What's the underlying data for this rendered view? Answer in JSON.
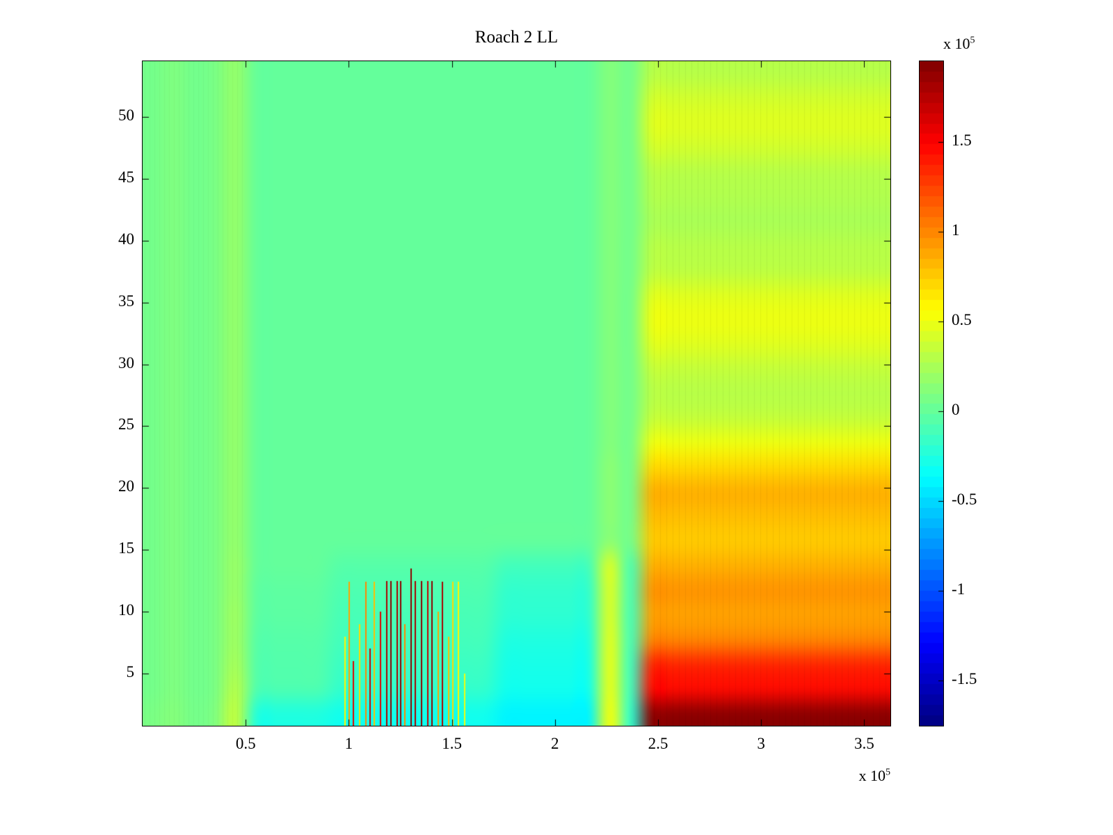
{
  "title": "Roach 2 LL",
  "axes": {
    "x_ticks": [
      "0.5",
      "1",
      "1.5",
      "2",
      "2.5",
      "3",
      "3.5"
    ],
    "x_tick_values": [
      0.5,
      1,
      1.5,
      2,
      2.5,
      3,
      3.5
    ],
    "y_ticks": [
      "5",
      "10",
      "15",
      "20",
      "25",
      "30",
      "35",
      "40",
      "45",
      "50"
    ],
    "y_tick_values": [
      5,
      10,
      15,
      20,
      25,
      30,
      35,
      40,
      45,
      50
    ],
    "x_range_e5": [
      0,
      3.627
    ],
    "y_range": [
      0.78,
      54.5
    ],
    "exponent": {
      "base": "x 10",
      "power": "5"
    }
  },
  "colorbar": {
    "ticks": [
      "1.5",
      "1",
      "0.5",
      "0",
      "-0.5",
      "-1",
      "-1.5"
    ],
    "tick_values": [
      1.5,
      1,
      0.5,
      0,
      -0.5,
      -1,
      -1.5
    ],
    "clim_e5": [
      -1.75,
      1.95
    ],
    "levels": 64,
    "exponent": {
      "base": "x 10",
      "power": "5"
    }
  },
  "chart_data": {
    "type": "heatmap",
    "title": "Roach 2 LL",
    "colormap": "jet",
    "value_scale": 100000,
    "clim_e5": [
      -1.75,
      1.95
    ],
    "grid_x_range_e5": [
      0,
      3.6
    ],
    "grid_y_range": [
      0,
      54
    ],
    "grid_rows_order": "top-to-bottom",
    "grid_e5": [
      [
        0.06,
        0.1,
        0.05,
        0.08,
        0.18,
        0,
        0,
        0,
        0,
        0,
        0,
        0,
        0,
        0,
        0,
        0,
        0,
        0,
        0,
        0,
        0,
        0,
        0.12,
        0.05,
        0.3,
        0.3,
        0.3,
        0.3,
        0.3,
        0.3,
        0.3,
        0.3,
        0.3,
        0.3,
        0.3,
        0.3
      ],
      [
        0.06,
        0.1,
        0.05,
        0.08,
        0.18,
        0,
        0,
        0,
        0,
        0,
        0,
        0,
        0,
        0,
        0,
        0,
        0,
        0,
        0,
        0,
        0,
        0,
        0.12,
        0.05,
        0.4,
        0.4,
        0.4,
        0.4,
        0.4,
        0.4,
        0.4,
        0.4,
        0.4,
        0.4,
        0.4,
        0.4
      ],
      [
        0.06,
        0.1,
        0.05,
        0.08,
        0.18,
        0,
        0,
        0,
        0,
        0,
        0,
        0,
        0,
        0,
        0,
        0,
        0,
        0,
        0,
        0,
        0,
        0,
        0.12,
        0.05,
        0.45,
        0.45,
        0.45,
        0.45,
        0.45,
        0.45,
        0.45,
        0.45,
        0.45,
        0.45,
        0.45,
        0.45
      ],
      [
        0.06,
        0.1,
        0.05,
        0.08,
        0.18,
        0,
        0,
        0,
        0,
        0,
        0,
        0,
        0,
        0,
        0,
        0,
        0,
        0,
        0,
        0,
        0,
        0,
        0.12,
        0.05,
        0.4,
        0.4,
        0.4,
        0.4,
        0.4,
        0.4,
        0.4,
        0.4,
        0.4,
        0.4,
        0.4,
        0.4
      ],
      [
        0.06,
        0.1,
        0.05,
        0.08,
        0.18,
        0,
        0,
        0,
        0,
        0,
        0,
        0,
        0,
        0,
        0,
        0,
        0,
        0,
        0,
        0,
        0,
        0,
        0.12,
        0.05,
        0.3,
        0.3,
        0.3,
        0.3,
        0.3,
        0.3,
        0.3,
        0.3,
        0.3,
        0.3,
        0.3,
        0.3
      ],
      [
        0.06,
        0.1,
        0.05,
        0.08,
        0.18,
        0,
        0,
        0,
        0,
        0,
        0,
        0,
        0,
        0,
        0,
        0,
        0,
        0,
        0,
        0,
        0,
        0,
        0.12,
        0.05,
        0.28,
        0.28,
        0.28,
        0.28,
        0.28,
        0.28,
        0.28,
        0.28,
        0.28,
        0.28,
        0.28,
        0.28
      ],
      [
        0.06,
        0.1,
        0.05,
        0.08,
        0.18,
        0,
        0,
        0,
        0,
        0,
        0,
        0,
        0,
        0,
        0,
        0,
        0,
        0,
        0,
        0,
        0,
        0,
        0.12,
        0.05,
        0.25,
        0.25,
        0.25,
        0.25,
        0.25,
        0.25,
        0.25,
        0.25,
        0.25,
        0.25,
        0.25,
        0.25
      ],
      [
        0.06,
        0.1,
        0.05,
        0.08,
        0.18,
        0,
        0,
        0,
        0,
        0,
        0,
        0,
        0,
        0,
        0,
        0,
        0,
        0,
        0,
        0,
        0,
        0,
        0.12,
        0.05,
        0.3,
        0.3,
        0.3,
        0.3,
        0.3,
        0.3,
        0.3,
        0.3,
        0.3,
        0.3,
        0.3,
        0.3
      ],
      [
        0.06,
        0.1,
        0.05,
        0.08,
        0.18,
        0,
        0,
        0,
        0,
        0,
        0,
        0,
        0,
        0,
        0,
        0,
        0,
        0,
        0,
        0,
        0,
        0,
        0.12,
        0.05,
        0.32,
        0.32,
        0.32,
        0.32,
        0.32,
        0.32,
        0.32,
        0.32,
        0.32,
        0.32,
        0.32,
        0.32
      ],
      [
        0.06,
        0.1,
        0.05,
        0.08,
        0.18,
        0,
        0,
        0,
        0,
        0,
        0,
        0,
        0,
        0,
        0,
        0,
        0,
        0,
        0,
        0,
        0,
        0,
        0.12,
        0.05,
        0.45,
        0.45,
        0.45,
        0.45,
        0.45,
        0.45,
        0.45,
        0.45,
        0.45,
        0.45,
        0.45,
        0.45
      ],
      [
        0.06,
        0.1,
        0.05,
        0.08,
        0.18,
        0,
        0,
        0,
        0,
        0,
        0,
        0,
        0,
        0,
        0,
        0,
        0,
        0,
        0,
        0,
        0,
        0,
        0.12,
        0.05,
        0.5,
        0.5,
        0.5,
        0.5,
        0.5,
        0.5,
        0.5,
        0.5,
        0.5,
        0.5,
        0.5,
        0.5
      ],
      [
        0.06,
        0.1,
        0.05,
        0.08,
        0.18,
        0,
        0,
        0,
        0,
        0,
        0,
        0,
        0,
        0,
        0,
        0,
        0,
        0,
        0,
        0,
        0,
        0,
        0.12,
        0.05,
        0.45,
        0.45,
        0.45,
        0.45,
        0.45,
        0.45,
        0.45,
        0.45,
        0.45,
        0.45,
        0.45,
        0.45
      ],
      [
        0.06,
        0.1,
        0.05,
        0.08,
        0.18,
        0,
        0,
        0,
        0,
        0,
        0,
        0,
        0,
        0,
        0,
        0,
        0,
        0,
        0,
        0,
        0,
        0,
        0.12,
        0.05,
        0.35,
        0.35,
        0.35,
        0.35,
        0.35,
        0.35,
        0.35,
        0.35,
        0.35,
        0.35,
        0.35,
        0.35
      ],
      [
        0.06,
        0.1,
        0.05,
        0.08,
        0.18,
        0,
        0,
        0,
        0,
        0,
        0,
        0,
        0,
        0,
        0,
        0,
        0,
        0,
        0,
        0,
        0,
        0,
        0.12,
        0.05,
        0.3,
        0.3,
        0.3,
        0.3,
        0.3,
        0.3,
        0.3,
        0.3,
        0.3,
        0.3,
        0.3,
        0.3
      ],
      [
        0.06,
        0.1,
        0.05,
        0.08,
        0.18,
        0,
        0,
        0,
        0,
        0,
        0,
        0,
        0,
        0,
        0,
        0,
        0,
        0,
        0,
        0,
        0,
        0,
        0.12,
        0.05,
        0.35,
        0.35,
        0.35,
        0.35,
        0.35,
        0.35,
        0.35,
        0.35,
        0.35,
        0.35,
        0.35,
        0.35
      ],
      [
        0.06,
        0.1,
        0.05,
        0.08,
        0.18,
        0,
        0,
        0,
        0,
        0,
        0,
        0,
        0,
        0,
        0,
        0,
        0,
        0,
        0,
        0,
        0,
        0,
        0.12,
        0.05,
        0.5,
        0.5,
        0.5,
        0.5,
        0.5,
        0.5,
        0.5,
        0.5,
        0.5,
        0.5,
        0.5,
        0.5
      ],
      [
        0.06,
        0.1,
        0.05,
        0.08,
        0.18,
        0,
        0,
        0,
        0,
        0,
        0,
        0,
        0,
        0,
        0,
        0,
        0,
        0,
        0,
        0,
        0,
        0,
        0.15,
        0.05,
        0.7,
        0.7,
        0.7,
        0.7,
        0.7,
        0.7,
        0.7,
        0.7,
        0.7,
        0.7,
        0.7,
        0.7
      ],
      [
        0.06,
        0.1,
        0.05,
        0.08,
        0.18,
        0,
        0,
        0,
        0,
        0,
        0,
        0,
        0,
        0,
        0,
        0,
        0,
        0,
        0,
        0,
        0,
        0,
        0.15,
        0.05,
        0.85,
        0.85,
        0.85,
        0.85,
        0.85,
        0.85,
        0.85,
        0.85,
        0.85,
        0.85,
        0.85,
        0.85
      ],
      [
        0.06,
        0.1,
        0.05,
        0.08,
        0.18,
        0,
        0,
        0,
        0,
        0,
        0,
        0,
        0,
        0,
        0,
        0,
        0,
        0,
        0,
        0,
        0,
        0,
        0.15,
        0.05,
        0.8,
        0.8,
        0.8,
        0.8,
        0.8,
        0.8,
        0.8,
        0.8,
        0.8,
        0.8,
        0.8,
        0.8
      ],
      [
        0.06,
        0.1,
        0.05,
        0.08,
        0.18,
        0,
        0,
        0,
        0,
        0,
        0,
        0,
        0,
        0,
        0,
        0,
        0,
        0,
        0,
        0,
        0,
        0,
        0.15,
        0.05,
        0.75,
        0.75,
        0.75,
        0.75,
        0.75,
        0.75,
        0.75,
        0.75,
        0.75,
        0.75,
        0.75,
        0.75
      ],
      [
        0.06,
        0.1,
        0.05,
        0.08,
        0.2,
        0,
        0,
        0,
        0,
        -0.05,
        -0.05,
        -0.05,
        -0.05,
        -0.05,
        -0.05,
        -0.05,
        -0.05,
        -0.12,
        -0.12,
        -0.12,
        -0.12,
        -0.12,
        0.45,
        -0.1,
        0.85,
        0.85,
        0.85,
        0.85,
        0.85,
        0.85,
        0.85,
        0.85,
        0.85,
        0.85,
        0.85,
        0.85
      ],
      [
        0.06,
        0.1,
        0.05,
        0.08,
        0.2,
        -0.02,
        -0.02,
        -0.02,
        -0.02,
        -0.08,
        -0.08,
        -0.08,
        -0.08,
        -0.08,
        -0.08,
        -0.08,
        -0.08,
        -0.18,
        -0.18,
        -0.18,
        -0.18,
        -0.18,
        0.45,
        -0.1,
        0.95,
        0.95,
        0.95,
        0.95,
        0.95,
        0.95,
        0.95,
        0.95,
        0.95,
        0.95,
        0.95,
        0.95
      ],
      [
        0.06,
        0.1,
        0.05,
        0.08,
        0.22,
        -0.03,
        -0.03,
        -0.03,
        -0.03,
        -0.1,
        -0.1,
        -0.1,
        -0.1,
        -0.1,
        -0.1,
        -0.1,
        -0.1,
        -0.2,
        -0.2,
        -0.2,
        -0.2,
        -0.2,
        0.45,
        -0.12,
        0.9,
        0.9,
        0.9,
        0.9,
        0.9,
        0.9,
        0.9,
        0.9,
        0.9,
        0.9,
        0.9,
        0.9
      ],
      [
        0.06,
        0.1,
        0.05,
        0.08,
        0.22,
        -0.05,
        -0.05,
        -0.05,
        -0.05,
        -0.12,
        -0.12,
        -0.12,
        -0.12,
        -0.12,
        -0.12,
        -0.12,
        -0.12,
        -0.25,
        -0.25,
        -0.25,
        -0.25,
        -0.25,
        0.48,
        -0.12,
        1.0,
        1.0,
        1.0,
        1.0,
        1.0,
        1.0,
        1.0,
        1.0,
        1.0,
        1.0,
        1.0,
        1.0
      ],
      [
        0.06,
        0.1,
        0.05,
        0.08,
        0.25,
        -0.06,
        -0.06,
        -0.06,
        -0.06,
        -0.15,
        -0.15,
        -0.15,
        -0.15,
        -0.15,
        -0.15,
        -0.15,
        -0.15,
        -0.28,
        -0.28,
        -0.28,
        -0.28,
        -0.28,
        0.5,
        -0.15,
        1.35,
        1.35,
        1.35,
        1.35,
        1.35,
        1.35,
        1.35,
        1.35,
        1.35,
        1.35,
        1.35,
        1.35
      ],
      [
        0.06,
        0.1,
        0.05,
        0.08,
        0.3,
        -0.08,
        -0.08,
        -0.08,
        -0.08,
        -0.18,
        -0.18,
        -0.18,
        -0.18,
        -0.18,
        -0.18,
        -0.18,
        -0.18,
        -0.3,
        -0.3,
        -0.3,
        -0.3,
        -0.3,
        0.5,
        -0.15,
        1.45,
        1.45,
        1.45,
        1.45,
        1.45,
        1.45,
        1.45,
        1.45,
        1.45,
        1.45,
        1.45,
        1.45
      ],
      [
        0.08,
        0.12,
        0.06,
        0.1,
        0.35,
        -0.25,
        -0.25,
        -0.25,
        -0.25,
        -0.3,
        -0.3,
        -0.3,
        -0.3,
        -0.3,
        -0.3,
        -0.3,
        -0.3,
        -0.4,
        -0.4,
        -0.4,
        -0.4,
        -0.4,
        0.55,
        -0.2,
        1.9,
        1.9,
        1.9,
        1.9,
        1.9,
        1.9,
        1.9,
        1.9,
        1.9,
        1.9,
        1.9,
        1.9
      ]
    ],
    "spikes": [
      {
        "x_e5": 0.98,
        "y_top": 8.0,
        "v_e5": 0.6
      },
      {
        "x_e5": 1.0,
        "y_top": 12.4,
        "v_e5": 0.9
      },
      {
        "x_e5": 1.02,
        "y_top": 6.0,
        "v_e5": 1.6
      },
      {
        "x_e5": 1.05,
        "y_top": 9.0,
        "v_e5": 0.7
      },
      {
        "x_e5": 1.08,
        "y_top": 12.4,
        "v_e5": 1.0
      },
      {
        "x_e5": 1.1,
        "y_top": 7.0,
        "v_e5": 1.7
      },
      {
        "x_e5": 1.12,
        "y_top": 12.4,
        "v_e5": 0.8
      },
      {
        "x_e5": 1.15,
        "y_top": 10.0,
        "v_e5": 1.6
      },
      {
        "x_e5": 1.18,
        "y_top": 12.5,
        "v_e5": 1.8
      },
      {
        "x_e5": 1.2,
        "y_top": 12.5,
        "v_e5": 1.9
      },
      {
        "x_e5": 1.23,
        "y_top": 12.5,
        "v_e5": 1.8
      },
      {
        "x_e5": 1.25,
        "y_top": 12.5,
        "v_e5": 1.9
      },
      {
        "x_e5": 1.27,
        "y_top": 9.0,
        "v_e5": 1.0
      },
      {
        "x_e5": 1.3,
        "y_top": 13.5,
        "v_e5": 1.9
      },
      {
        "x_e5": 1.32,
        "y_top": 12.5,
        "v_e5": 1.8
      },
      {
        "x_e5": 1.35,
        "y_top": 12.5,
        "v_e5": 1.9
      },
      {
        "x_e5": 1.38,
        "y_top": 12.5,
        "v_e5": 1.7
      },
      {
        "x_e5": 1.4,
        "y_top": 12.5,
        "v_e5": 1.9
      },
      {
        "x_e5": 1.43,
        "y_top": 10.0,
        "v_e5": 0.9
      },
      {
        "x_e5": 1.45,
        "y_top": 12.4,
        "v_e5": 1.8
      },
      {
        "x_e5": 1.48,
        "y_top": 8.0,
        "v_e5": 0.8
      },
      {
        "x_e5": 1.5,
        "y_top": 12.4,
        "v_e5": 0.7
      },
      {
        "x_e5": 1.53,
        "y_top": 12.4,
        "v_e5": 0.6
      },
      {
        "x_e5": 1.56,
        "y_top": 5.0,
        "v_e5": 0.5
      }
    ]
  }
}
